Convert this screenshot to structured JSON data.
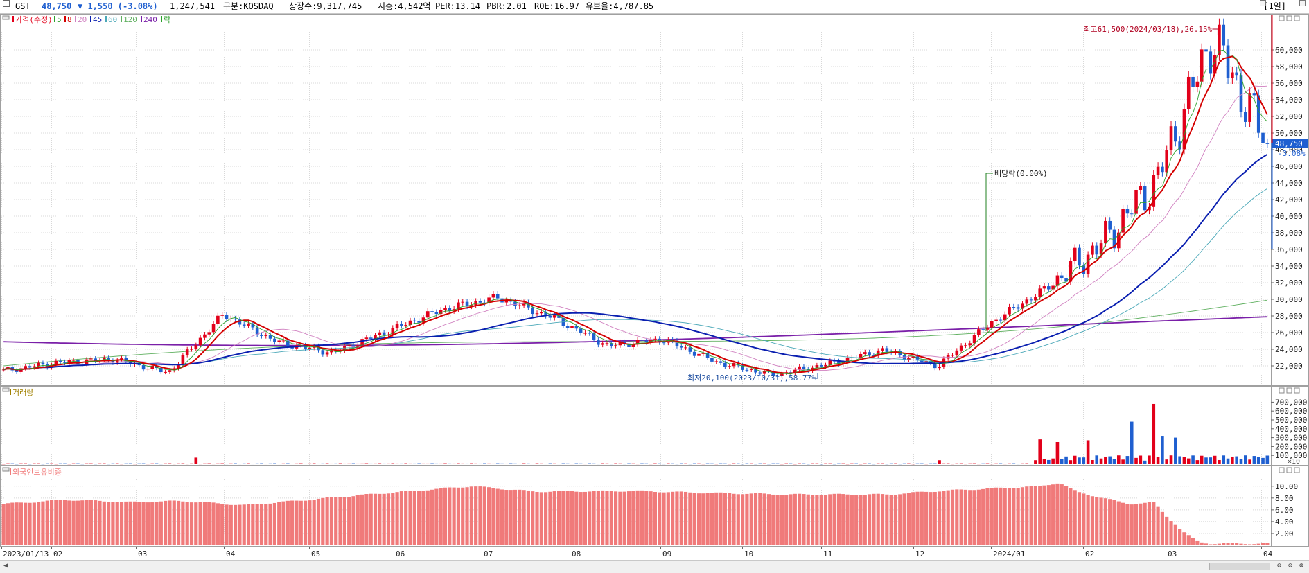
{
  "header": {
    "name": "GST",
    "price": "48,750",
    "change": "▼ 1,550 (-3.08%)",
    "volume": "1,247,541",
    "market": "구분:KOSDAQ",
    "shares": "상장수:9,317,745",
    "mcap": "시총:4,542억",
    "per": "PER:13.14",
    "pbr": "PBR:2.01",
    "roe": "ROE:16.97",
    "float": "유보율:4,787.85",
    "period": "[1일]"
  },
  "colors": {
    "up": "#e2001a",
    "down": "#1f5fd0",
    "ma5": "#2aa02a",
    "ma8": "#d40000",
    "ma20": "#d080c0",
    "ma45": "#0a1fb0",
    "ma60": "#4aa8b8",
    "ma120": "#60b060",
    "ma240": "#7a1fa8",
    "foreign": "#f07a7a",
    "grid": "#d8d8d8"
  },
  "legend": {
    "price": "가격(수정)",
    "ma5": "5",
    "ma8": "8",
    "ma20": "20",
    "ma45": "45",
    "ma60": "60",
    "ma120": "120",
    "ma240": "240",
    "ex": "락"
  },
  "panels": {
    "volume_title": "거래량",
    "foreign_title": "외국인보유비중"
  },
  "chart_data": [
    {
      "type": "candlestick",
      "title": "",
      "ylim": [
        20000,
        62500
      ],
      "y_ticks": [
        22000,
        24000,
        26000,
        28000,
        30000,
        32000,
        34000,
        36000,
        38000,
        40000,
        42000,
        44000,
        46000,
        48000,
        50000,
        52000,
        54000,
        56000,
        58000,
        60000
      ],
      "y_tick_labels": [
        "22,000",
        "24,000",
        "26,000",
        "28,000",
        "30,000",
        "32,000",
        "34,000",
        "36,000",
        "38,000",
        "40,000",
        "42,000",
        "44,000",
        "46,000",
        "48,000",
        "50,000",
        "52,000",
        "54,000",
        "56,000",
        "58,000",
        "60,000"
      ],
      "x_tick_labels": [
        "2023/01/13",
        "02",
        "03",
        "04",
        "05",
        "06",
        "07",
        "08",
        "09",
        "10",
        "11",
        "12",
        "2024/01",
        "02",
        "03",
        "04"
      ],
      "current_price_label": "48,750",
      "current_change_label": "-3.08%",
      "current_price": 48750,
      "annotations": {
        "high": "최고61,500(2024/03/18),26.15%",
        "high_value": 61500,
        "low": "최저20,100(2023/10/31),58.77%",
        "low_value": 20100,
        "dividend": "배당락(0.00%)"
      },
      "ma240_endpoints": [
        [
          0,
          24900
        ],
        [
          1,
          27900
        ]
      ],
      "ma120_endpoints": [
        [
          0,
          22000
        ],
        [
          1,
          29900
        ]
      ],
      "key_points": {
        "dates": [
          "2023/01/13",
          "2023/02",
          "2023/03",
          "2023/03m",
          "2023/04",
          "2023/05",
          "2023/05m",
          "2023/06",
          "2023/07",
          "2023/07m",
          "2023/08",
          "2023/08m",
          "2023/09",
          "2023/10",
          "2023/10/31",
          "2023/11",
          "2023/12",
          "2023/12m",
          "2024/01",
          "2024/02",
          "2024/02m",
          "2024/03",
          "2024/03/18",
          "2024/03e"
        ],
        "close": [
          21400,
          22400,
          22800,
          21200,
          28200,
          24800,
          23600,
          26200,
          28800,
          30200,
          27800,
          24400,
          25200,
          22400,
          20900,
          22200,
          23900,
          22000,
          27300,
          31400,
          36800,
          44500,
          61500,
          48750
        ]
      }
    },
    {
      "type": "bar",
      "title": "거래량",
      "ylim": [
        0,
        750000
      ],
      "y_tick_labels": [
        "100,000",
        "200,000",
        "300,000",
        "400,000",
        "500,000",
        "600,000",
        "700,000"
      ],
      "unit_label": "×10",
      "spikes": [
        {
          "pos": 0.151,
          "value": 75000
        },
        {
          "pos": 0.74,
          "value": 45000
        },
        {
          "pos": 0.821,
          "value": 280000
        },
        {
          "pos": 0.834,
          "value": 250000
        },
        {
          "pos": 0.859,
          "value": 270000
        },
        {
          "pos": 0.892,
          "value": 480000
        },
        {
          "pos": 0.911,
          "value": 680000
        },
        {
          "pos": 0.918,
          "value": 320000
        },
        {
          "pos": 0.926,
          "value": 300000
        }
      ]
    },
    {
      "type": "bar",
      "title": "외국인보유비중",
      "ylim": [
        0,
        11.5
      ],
      "y_tick_labels": [
        "2.00",
        "4.00",
        "6.00",
        "8.00",
        "10.00"
      ],
      "profile": [
        [
          0,
          7.0
        ],
        [
          0.05,
          7.7
        ],
        [
          0.1,
          7.3
        ],
        [
          0.14,
          7.5
        ],
        [
          0.19,
          6.8
        ],
        [
          0.23,
          7.5
        ],
        [
          0.3,
          8.8
        ],
        [
          0.37,
          10.0
        ],
        [
          0.42,
          9.1
        ],
        [
          0.5,
          9.2
        ],
        [
          0.55,
          8.9
        ],
        [
          0.62,
          8.6
        ],
        [
          0.7,
          8.6
        ],
        [
          0.74,
          9.2
        ],
        [
          0.79,
          9.7
        ],
        [
          0.82,
          10.0
        ],
        [
          0.835,
          10.6
        ],
        [
          0.85,
          9.0
        ],
        [
          0.87,
          8.0
        ],
        [
          0.89,
          7.0
        ],
        [
          0.91,
          7.2
        ],
        [
          0.92,
          5.0
        ],
        [
          0.935,
          2.0
        ],
        [
          0.945,
          0.6
        ],
        [
          0.955,
          0.3
        ]
      ]
    }
  ]
}
